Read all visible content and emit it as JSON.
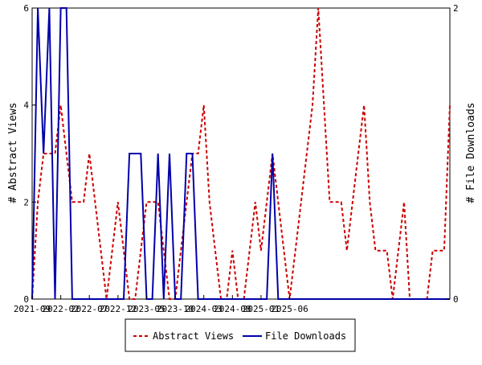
{
  "chart_data": {
    "type": "line",
    "title": "",
    "y_left_label": "# Abstract Views",
    "y_right_label": "# File Downloads",
    "y_left_range": [
      0,
      6
    ],
    "y_right_range": [
      0,
      2
    ],
    "y_left_ticks": [
      "0",
      "2",
      "4",
      "6"
    ],
    "y_right_ticks": [
      "0",
      "2"
    ],
    "x_tick_labels": [
      "2021-09",
      "2022-02",
      "2022-07",
      "2022-12",
      "2023-05",
      "2023-10",
      "2024-03",
      "2024-08",
      "2025-01",
      "2025-06"
    ],
    "grid": false,
    "legend": "bottom",
    "series": [
      {
        "name": "Abstract Views",
        "axis": "left",
        "color": "#cc0000",
        "style": "dashed",
        "values": [
          0,
          2,
          3,
          3,
          3,
          4,
          3,
          2,
          2,
          2,
          3,
          2,
          1,
          0,
          1,
          2,
          1,
          0,
          0,
          1,
          2,
          2,
          2,
          1,
          0,
          0,
          1,
          2,
          3,
          3,
          4,
          2,
          1,
          0,
          0,
          1,
          0,
          0,
          1,
          2,
          1,
          2,
          3,
          2,
          1,
          0,
          1,
          2,
          3,
          4,
          6,
          4,
          2,
          2,
          2,
          1,
          2,
          3,
          4,
          2,
          1,
          1,
          1,
          0,
          1,
          2,
          0,
          0,
          0,
          0,
          1,
          1,
          1,
          4
        ]
      },
      {
        "name": "File Downloads",
        "axis": "right",
        "color": "#0000aa",
        "style": "solid",
        "values": [
          0,
          2,
          1,
          2,
          0,
          2,
          2,
          0,
          0,
          0,
          0,
          0,
          0,
          0,
          0,
          0,
          0,
          1,
          1,
          1,
          0,
          0,
          1,
          0,
          1,
          0,
          0,
          1,
          1,
          0,
          0,
          0,
          0,
          0,
          0,
          0,
          0,
          0,
          0,
          0,
          0,
          0,
          1,
          0,
          0,
          0,
          0,
          0,
          0,
          0,
          0,
          0,
          0,
          0,
          0,
          0,
          0,
          0,
          0,
          0,
          0,
          0,
          0,
          0,
          0,
          0,
          0,
          0,
          0,
          0,
          0,
          0,
          0,
          0
        ]
      }
    ]
  }
}
